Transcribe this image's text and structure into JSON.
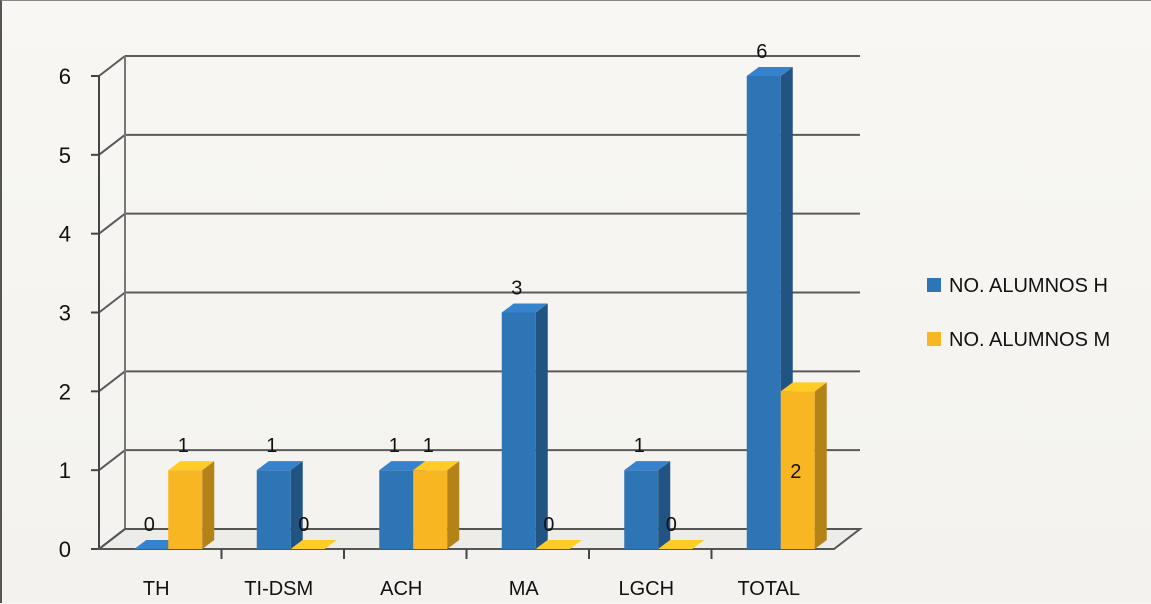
{
  "chart_data": {
    "type": "bar",
    "categories": [
      "TH",
      "TI-DSM",
      "ACH",
      "MA",
      "LGCH",
      "TOTAL"
    ],
    "series": [
      {
        "name": "NO. ALUMNOS H",
        "values": [
          0,
          1,
          1,
          3,
          1,
          6
        ],
        "color": "#2e75b6"
      },
      {
        "name": "NO. ALUMNOS M",
        "values": [
          1,
          0,
          1,
          0,
          0,
          2
        ],
        "color": "#f8b622"
      }
    ],
    "yticks": [
      "0",
      "1",
      "2",
      "3",
      "4",
      "5",
      "6"
    ],
    "ylim": [
      0,
      6
    ],
    "title": "",
    "xlabel": "",
    "ylabel": "",
    "grid": true,
    "legend_position": "right",
    "style": "3d-clustered-bar"
  }
}
